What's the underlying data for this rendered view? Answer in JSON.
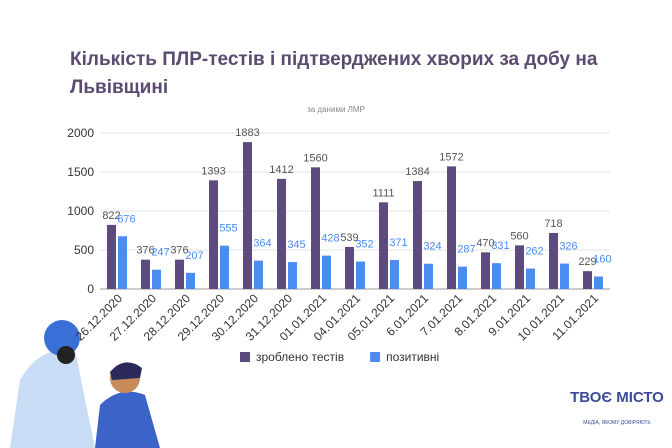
{
  "chart_data": {
    "type": "bar",
    "title": "Кількість ПЛР-тестів і підтверджених хворих за добу на Львівщині",
    "subtitle": "за даними ЛМР",
    "categories": [
      "26.12.2020",
      "27.12.2020",
      "28.12.2020",
      "29.12.2020",
      "30.12.2020",
      "31.12.2020",
      "01.01.2021",
      "04.01.2021",
      "05.01.2021",
      "6.01.2021",
      "7.01.2021",
      "8.01.2021",
      "9.01.2021",
      "10.01.2021",
      "11.01.2021"
    ],
    "series": [
      {
        "name": "зроблено тестів",
        "color": "#5e4b7d",
        "values": [
          822,
          376,
          376,
          1393,
          1883,
          1412,
          1560,
          539,
          1111,
          1384,
          1572,
          470,
          560,
          718,
          229
        ]
      },
      {
        "name": "позитивні",
        "color": "#4a8cf0",
        "values": [
          676,
          247,
          207,
          555,
          364,
          345,
          428,
          352,
          371,
          324,
          287,
          331,
          262,
          326,
          160
        ]
      }
    ],
    "ylim": [
      0,
      2000
    ],
    "yticks": [
      0,
      500,
      1000,
      1500,
      2000
    ],
    "grid": true,
    "legend": "bottom"
  },
  "logo": {
    "name": "ТВОЄ МІСТО",
    "tagline": "МЕДІА, ЯКОМУ ДОВІРЯЮТЬ"
  }
}
